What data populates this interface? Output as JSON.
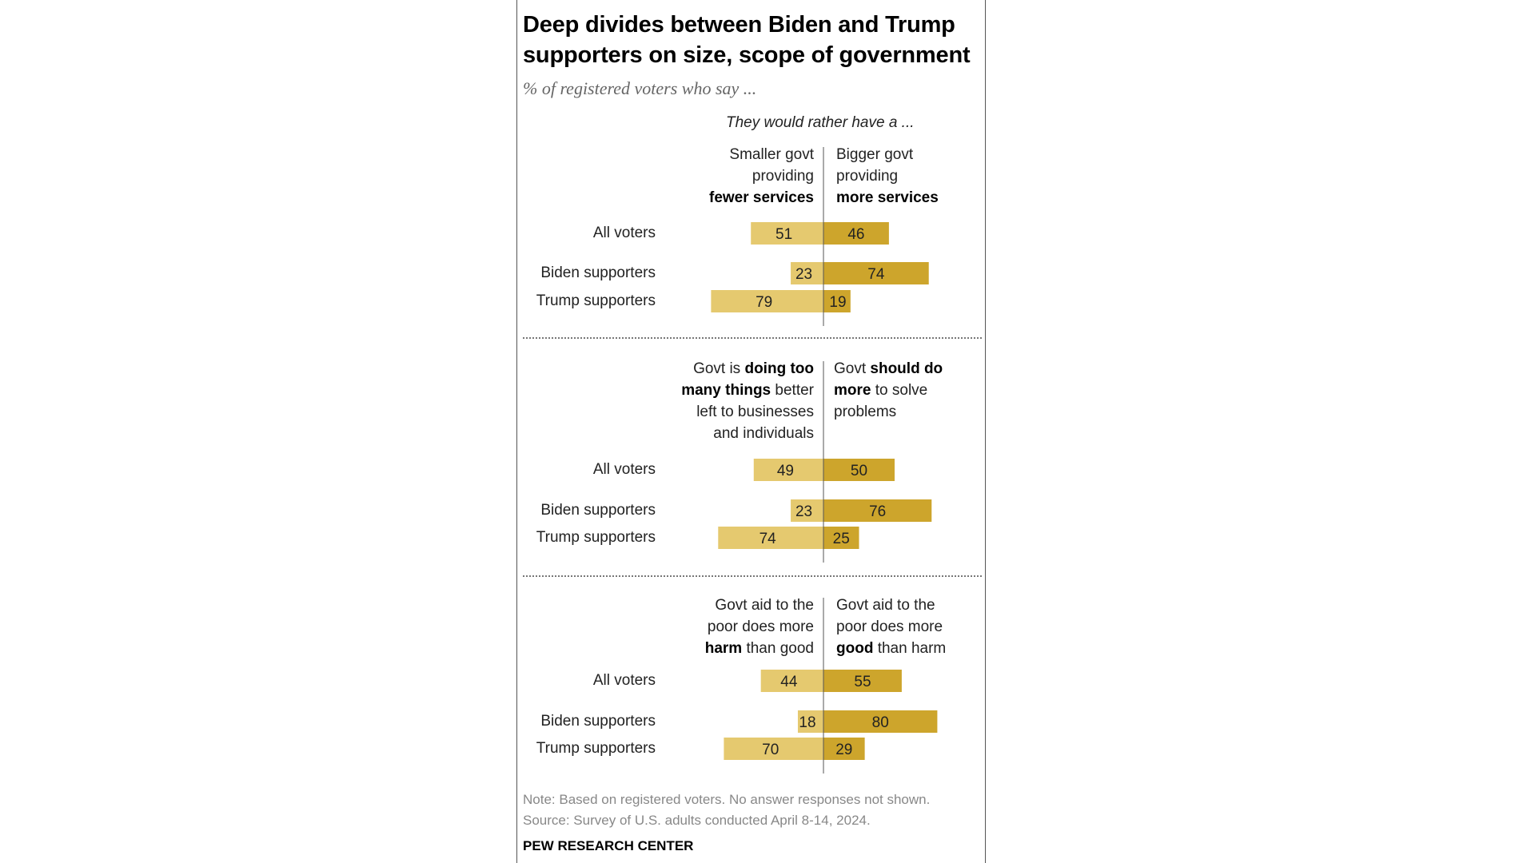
{
  "title_lines": [
    "Deep divides between Biden and Trump",
    "supporters on size, scope of government"
  ],
  "subtitle": "% of registered voters who say ...",
  "lead": "They would rather have a ...",
  "colors": {
    "left_bar": "#E5C96F",
    "right_bar": "#CDA52C",
    "axis": "#555555",
    "label": "#222222"
  },
  "panels": [
    {
      "left_header_lines": [
        [
          {
            "t": "Smaller govt",
            "b": false
          }
        ],
        [
          {
            "t": "providing",
            "b": false
          }
        ],
        [
          {
            "t": "fewer services",
            "b": true
          }
        ]
      ],
      "right_header_lines": [
        [
          {
            "t": "Bigger govt",
            "b": false
          }
        ],
        [
          {
            "t": "providing",
            "b": false
          }
        ],
        [
          {
            "t": "more services",
            "b": true
          }
        ]
      ]
    },
    {
      "left_header_lines": [
        [
          {
            "t": "Govt is ",
            "b": false
          },
          {
            "t": "doing too",
            "b": true
          }
        ],
        [
          {
            "t": "many things",
            "b": true
          },
          {
            "t": " better",
            "b": false
          }
        ],
        [
          {
            "t": "left to businesses",
            "b": false
          }
        ],
        [
          {
            "t": "and individuals",
            "b": false
          }
        ]
      ],
      "right_header_lines": [
        [
          {
            "t": "Govt ",
            "b": false
          },
          {
            "t": "should do",
            "b": true
          }
        ],
        [
          {
            "t": "more",
            "b": true
          },
          {
            "t": " to solve",
            "b": false
          }
        ],
        [
          {
            "t": "problems",
            "b": false
          }
        ]
      ]
    },
    {
      "left_header_lines": [
        [
          {
            "t": "Govt aid to the",
            "b": false
          }
        ],
        [
          {
            "t": "poor does more",
            "b": false
          }
        ],
        [
          {
            "t": "harm",
            "b": true
          },
          {
            "t": " than good",
            "b": false
          }
        ]
      ],
      "right_header_lines": [
        [
          {
            "t": "Govt aid to the",
            "b": false
          }
        ],
        [
          {
            "t": "poor does more",
            "b": false
          }
        ],
        [
          {
            "t": "good",
            "b": true
          },
          {
            "t": " than harm",
            "b": false
          }
        ]
      ]
    }
  ],
  "chart_data": {
    "type": "bar",
    "subtype": "diverging",
    "title": "Deep divides between Biden and Trump supporters on size, scope of government",
    "categories": [
      "All voters",
      "Biden supporters",
      "Trump supporters"
    ],
    "panels": [
      {
        "series": [
          {
            "name": "Smaller govt providing fewer services",
            "values": [
              51,
              23,
              79
            ]
          },
          {
            "name": "Bigger govt providing more services",
            "values": [
              46,
              74,
              19
            ]
          }
        ]
      },
      {
        "series": [
          {
            "name": "Govt is doing too many things better left to businesses and individuals",
            "values": [
              49,
              23,
              74
            ]
          },
          {
            "name": "Govt should do more to solve problems",
            "values": [
              50,
              76,
              25
            ]
          }
        ]
      },
      {
        "series": [
          {
            "name": "Govt aid to the poor does more harm than good",
            "values": [
              44,
              18,
              70
            ]
          },
          {
            "name": "Govt aid to the poor does more good than harm",
            "values": [
              55,
              80,
              29
            ]
          }
        ]
      }
    ],
    "unit": "%"
  },
  "note_lines": [
    "Note: Based on registered voters. No answer responses not shown.",
    "Source: Survey of U.S. adults conducted April 8-14, 2024."
  ],
  "source_logo": "PEW RESEARCH CENTER"
}
